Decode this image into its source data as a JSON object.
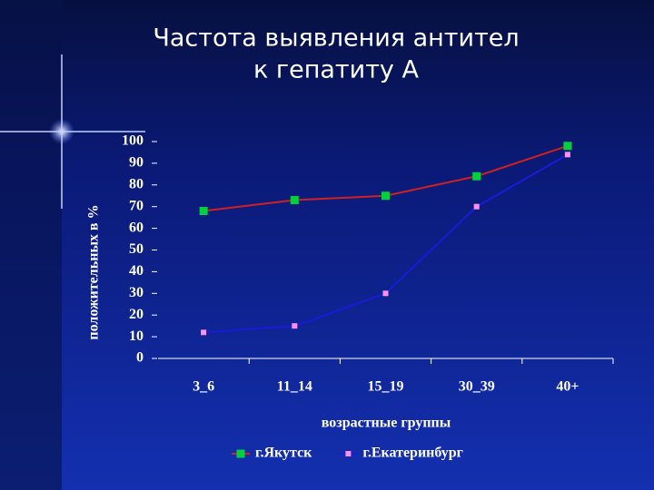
{
  "chart_data": {
    "type": "line",
    "title": [
      "Частота выявления антител",
      "к гепатиту А"
    ],
    "x_label": "возрастные группы",
    "y_label": "положительных в %",
    "categories": [
      "3_6",
      "11_14",
      "15_19",
      "30_39",
      "40+"
    ],
    "series": [
      {
        "name": "г.Якутск",
        "color": "#d02020",
        "marker_color": "#00d040",
        "marker_size": 9,
        "values": [
          68,
          73,
          75,
          84,
          98
        ]
      },
      {
        "name": "г.Екатеринбург",
        "color": "#1a1ad8",
        "marker_color": "#ff90f0",
        "marker_size": 6,
        "values": [
          12,
          15,
          30,
          70,
          94
        ]
      }
    ],
    "ylim": [
      0,
      100
    ],
    "yticks": [
      0,
      10,
      20,
      30,
      40,
      50,
      60,
      70,
      80,
      90,
      100
    ],
    "grid": false,
    "legend": "bottom"
  }
}
